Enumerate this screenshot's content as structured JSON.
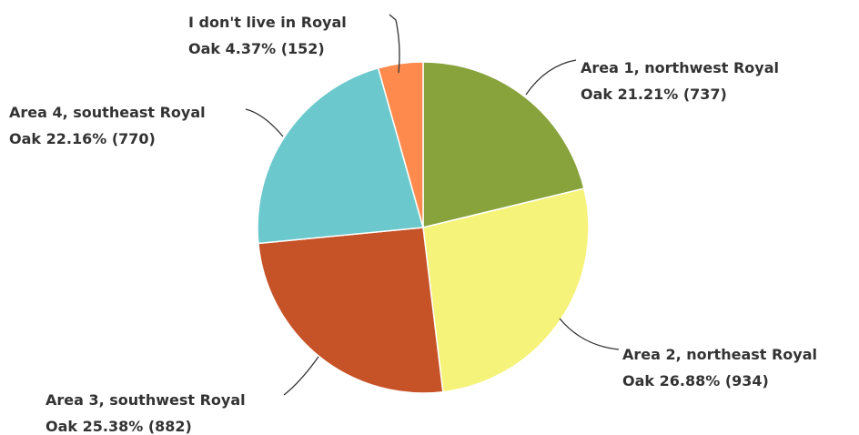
{
  "chart_data": {
    "type": "pie",
    "title": "",
    "start_angle_deg": 0,
    "direction": "clockwise",
    "slices": [
      {
        "name": "Area 1, northwest Royal Oak",
        "percent": 21.21,
        "count": 737,
        "color": "#88A33C",
        "label_line1": "Area 1, northwest Royal",
        "label_line2": "Oak 21.21% (737)"
      },
      {
        "name": "Area 2, northeast Royal Oak",
        "percent": 26.88,
        "count": 934,
        "color": "#F6F37A",
        "label_line1": "Area 2, northeast Royal",
        "label_line2": "Oak 26.88% (934)"
      },
      {
        "name": "Area 3, southwest Royal Oak",
        "percent": 25.38,
        "count": 882,
        "color": "#C65228",
        "label_line1": "Area 3, southwest Royal",
        "label_line2": "Oak 25.38% (882)"
      },
      {
        "name": "Area 4, southeast Royal Oak",
        "percent": 22.16,
        "count": 770,
        "color": "#6BC8CC",
        "label_line1": "Area 4, southeast Royal",
        "label_line2": "Oak 22.16% (770)"
      },
      {
        "name": "I don't live in Royal Oak",
        "percent": 4.37,
        "count": 152,
        "color": "#FE8B4D",
        "label_line1": "I don't live in Royal",
        "label_line2": "Oak 4.37% (152)"
      }
    ]
  }
}
